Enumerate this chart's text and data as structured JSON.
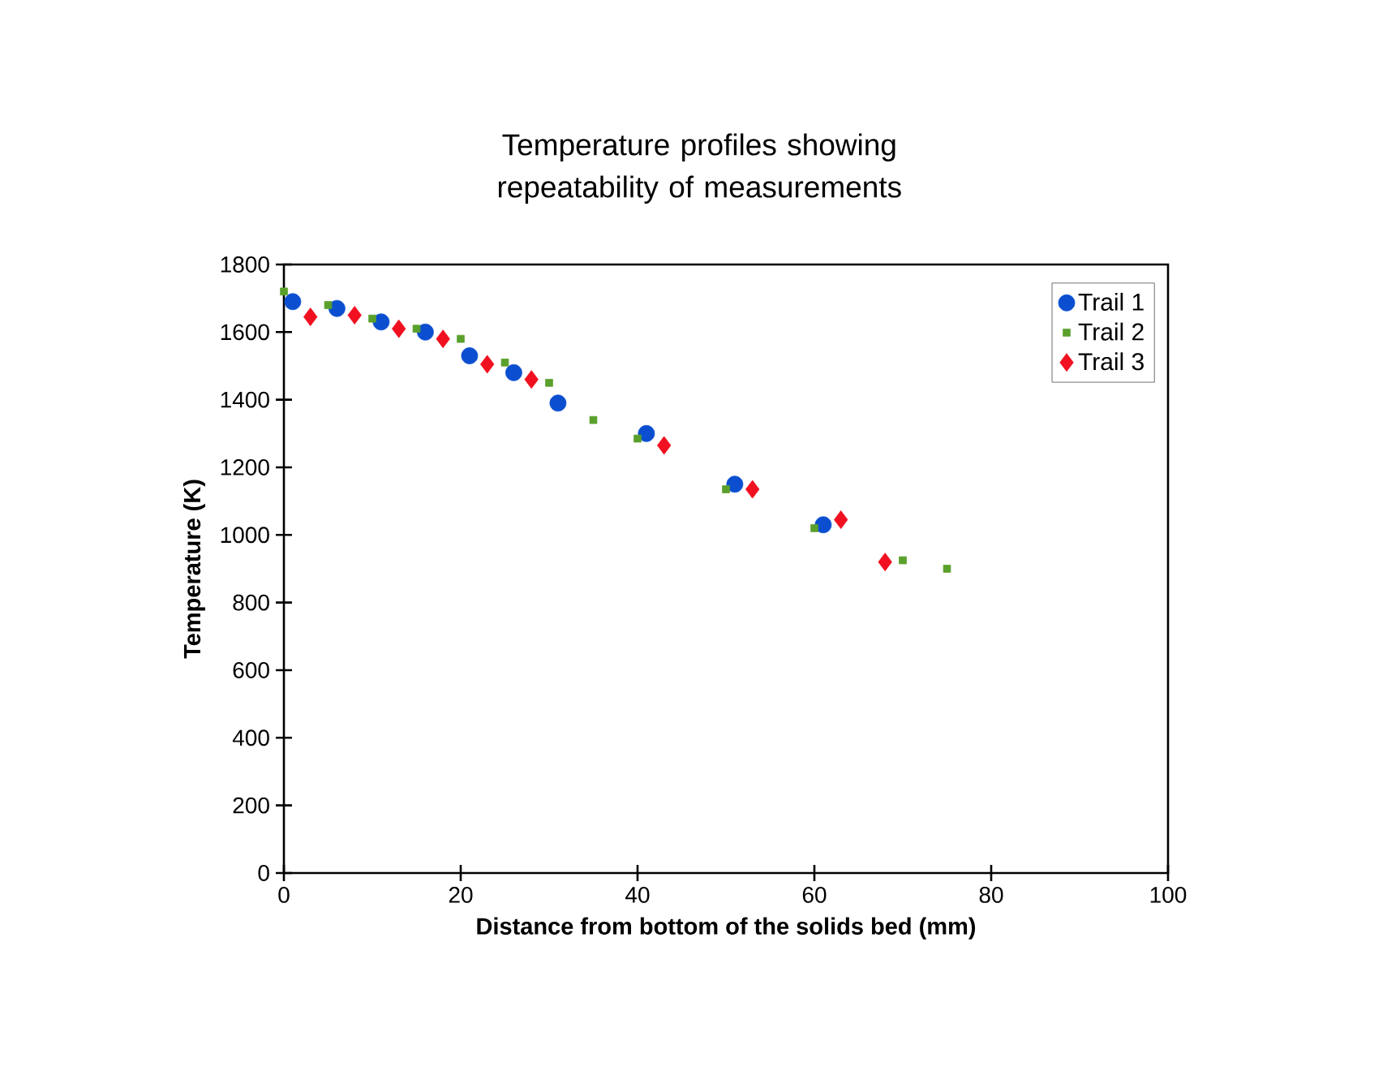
{
  "chart_data": {
    "type": "scatter",
    "title": "Temperature profiles showing repeatability of measurements",
    "xlabel": "Distance from bottom of the solids bed (mm)",
    "ylabel": "Temperature (K)",
    "xlim": [
      0,
      100
    ],
    "ylim": [
      0,
      1800
    ],
    "xticks": [
      0,
      20,
      40,
      60,
      80,
      100
    ],
    "yticks": [
      0,
      200,
      400,
      600,
      800,
      1000,
      1200,
      1400,
      1600,
      1800
    ],
    "grid": false,
    "legend": "top right",
    "series": [
      {
        "name": "Trail 1",
        "color": "#0b4fd0",
        "marker": "circle",
        "x": [
          1,
          6,
          11,
          16,
          21,
          26,
          31,
          41,
          51,
          61
        ],
        "values": [
          1690,
          1670,
          1630,
          1600,
          1530,
          1480,
          1390,
          1300,
          1150,
          1030
        ]
      },
      {
        "name": "Trail 2",
        "color": "#5aa02c",
        "marker": "square",
        "x": [
          0,
          5,
          10,
          15,
          20,
          25,
          30,
          35,
          40,
          50,
          60,
          70,
          75
        ],
        "values": [
          1720,
          1680,
          1640,
          1610,
          1580,
          1510,
          1450,
          1340,
          1285,
          1135,
          1020,
          925,
          900
        ]
      },
      {
        "name": "Trail 3",
        "color": "#f01020",
        "marker": "diamond",
        "x": [
          3,
          8,
          13,
          18,
          23,
          28,
          43,
          53,
          63,
          68
        ],
        "values": [
          1645,
          1650,
          1610,
          1580,
          1505,
          1460,
          1265,
          1135,
          1045,
          920
        ]
      }
    ]
  }
}
